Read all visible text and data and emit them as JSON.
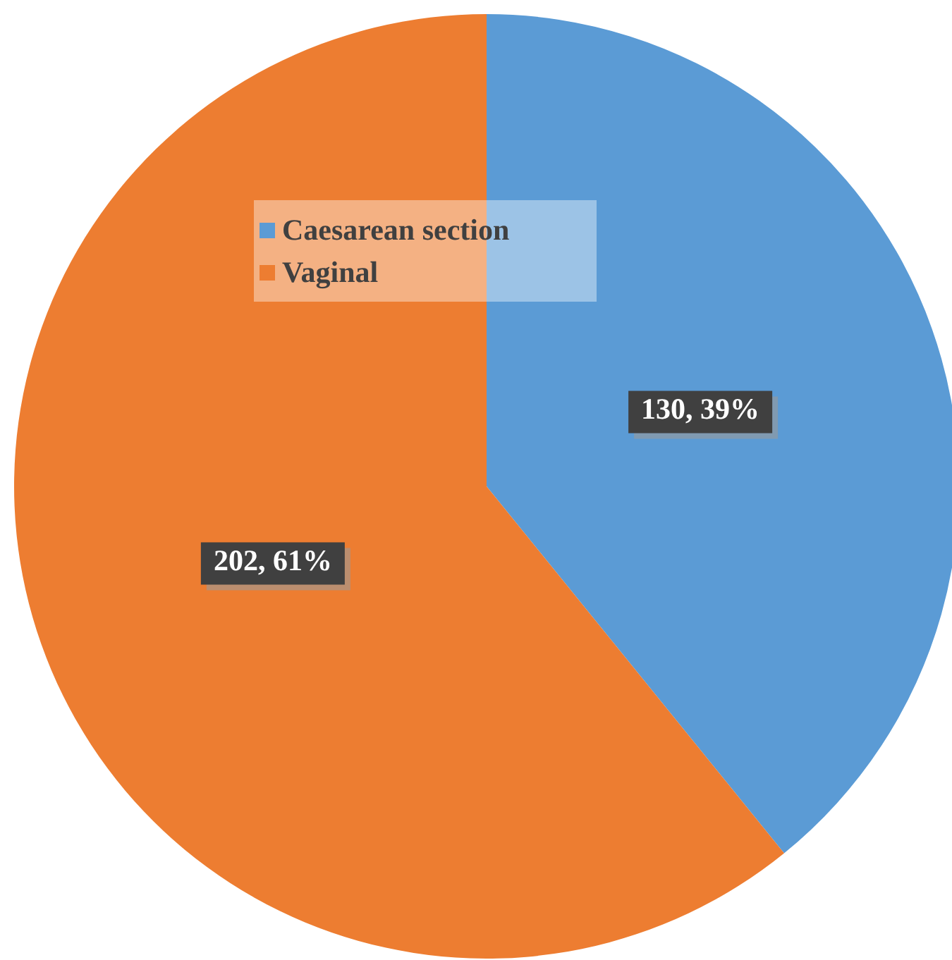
{
  "chart_data": {
    "type": "pie",
    "categories": [
      "Caesarean section",
      "Vaginal"
    ],
    "values": [
      130,
      202
    ],
    "colors": [
      "#5b9bd5",
      "#ed7d31"
    ],
    "value_labels": [
      "130, 39%",
      "202, 61%"
    ],
    "legend": "top"
  }
}
